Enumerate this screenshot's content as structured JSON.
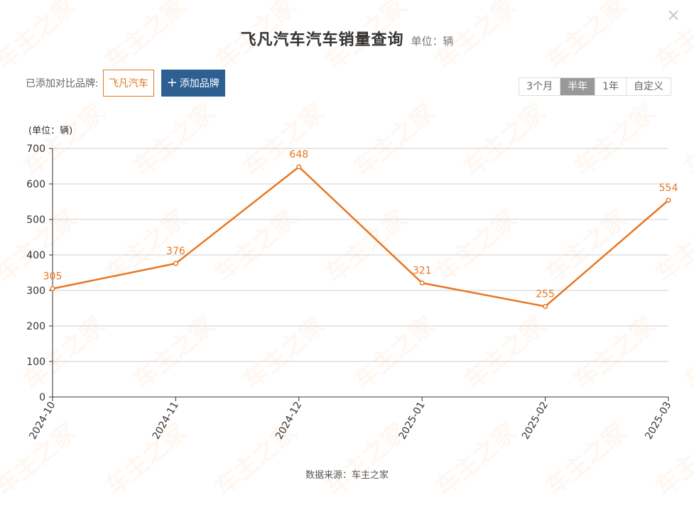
{
  "header": {
    "title": "飞凡汽车汽车销量查询",
    "unit": "单位：辆",
    "close_symbol": "×"
  },
  "brands": {
    "label": "已添加对比品牌:",
    "items": [
      "飞凡汽车"
    ],
    "add_label": "添加品牌",
    "add_symbol": "+"
  },
  "ranges": [
    {
      "label": "3个月",
      "active": false
    },
    {
      "label": "半年",
      "active": true
    },
    {
      "label": "1年",
      "active": false
    },
    {
      "label": "自定义",
      "active": false
    }
  ],
  "watermark": {
    "text": "车主之家",
    "url": "www.16888.com"
  },
  "source": "数据来源：车主之家",
  "colors": {
    "line": "#e87722",
    "brand": "#e07a1f",
    "button": "#2d5f92"
  },
  "chart_data": {
    "type": "line",
    "ylabel": "(单位：辆)",
    "categories": [
      "2024-10",
      "2024-11",
      "2024-12",
      "2025-01",
      "2025-02",
      "2025-03"
    ],
    "series": [
      {
        "values": [
          305,
          376,
          648,
          321,
          255,
          554
        ]
      }
    ],
    "ylim": [
      0,
      700
    ],
    "yticks": [
      0,
      100,
      200,
      300,
      400,
      500,
      600,
      700
    ],
    "grid": true,
    "data_labels": true
  }
}
